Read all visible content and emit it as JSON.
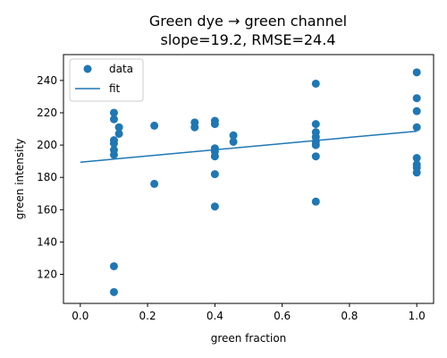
{
  "chart_data": {
    "type": "scatter",
    "title": "Green dye → green channel",
    "subtitle": "slope=19.2, RMSE=24.4",
    "xlabel": "green fraction",
    "ylabel": "green intensity",
    "xlim": [
      -0.05,
      1.05
    ],
    "ylim": [
      102,
      256
    ],
    "x_ticks": [
      0.0,
      0.2,
      0.4,
      0.6,
      0.8,
      1.0
    ],
    "x_tick_labels": [
      "0.0",
      "0.2",
      "0.4",
      "0.6",
      "0.8",
      "1.0"
    ],
    "y_ticks": [
      120,
      140,
      160,
      180,
      200,
      220,
      240
    ],
    "y_tick_labels": [
      "120",
      "140",
      "160",
      "180",
      "200",
      "220",
      "240"
    ],
    "grid": false,
    "legend_position": "top-left",
    "series": [
      {
        "name": "data",
        "kind": "scatter",
        "color": "#1f77b4",
        "points": [
          [
            0.1,
            220
          ],
          [
            0.1,
            216
          ],
          [
            0.1,
            203
          ],
          [
            0.1,
            201
          ],
          [
            0.1,
            197
          ],
          [
            0.1,
            194
          ],
          [
            0.1,
            125
          ],
          [
            0.1,
            109
          ],
          [
            0.115,
            211
          ],
          [
            0.115,
            207
          ],
          [
            0.22,
            212
          ],
          [
            0.22,
            176
          ],
          [
            0.34,
            214
          ],
          [
            0.34,
            211
          ],
          [
            0.4,
            215
          ],
          [
            0.4,
            213
          ],
          [
            0.4,
            198
          ],
          [
            0.4,
            196
          ],
          [
            0.4,
            193
          ],
          [
            0.4,
            182
          ],
          [
            0.4,
            162
          ],
          [
            0.455,
            206
          ],
          [
            0.455,
            202
          ],
          [
            0.7,
            238
          ],
          [
            0.7,
            213
          ],
          [
            0.7,
            208
          ],
          [
            0.7,
            205
          ],
          [
            0.7,
            202
          ],
          [
            0.7,
            200
          ],
          [
            0.7,
            193
          ],
          [
            0.7,
            165
          ],
          [
            1.0,
            245
          ],
          [
            1.0,
            229
          ],
          [
            1.0,
            221
          ],
          [
            1.0,
            211
          ],
          [
            1.0,
            192
          ],
          [
            1.0,
            188
          ],
          [
            1.0,
            186
          ],
          [
            1.0,
            183
          ]
        ]
      },
      {
        "name": "fit",
        "kind": "line",
        "color": "#1f77b4",
        "x": [
          0.0,
          1.0
        ],
        "y": [
          189.4,
          208.6
        ]
      }
    ]
  }
}
